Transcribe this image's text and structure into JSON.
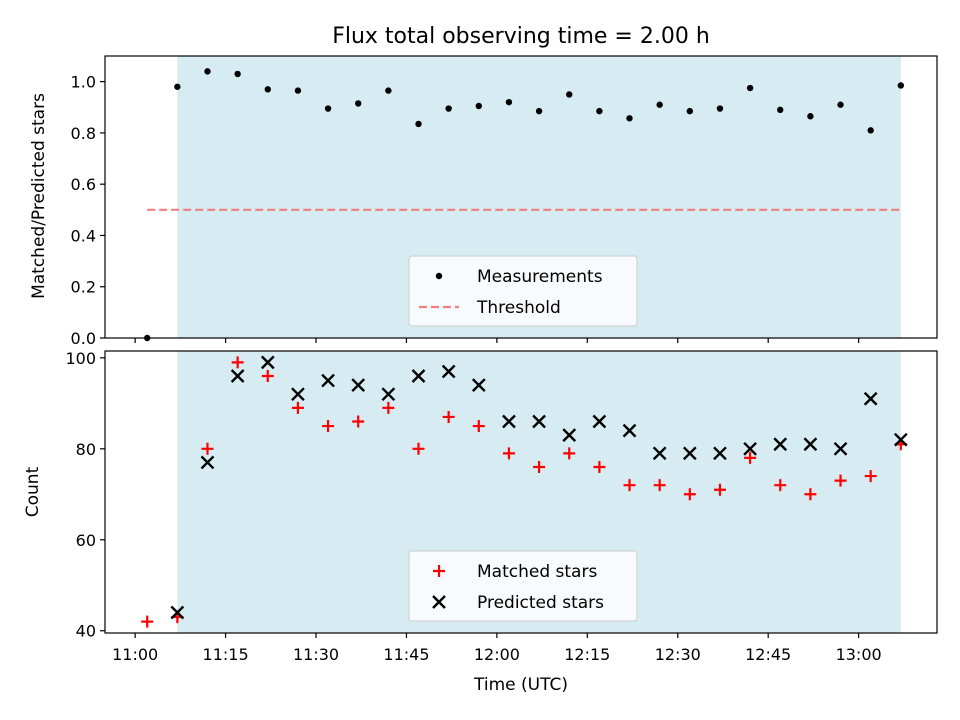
{
  "figure": {
    "title": "Flux total observing time = 2.00 h",
    "xlabel": "Time (UTC)"
  },
  "colors": {
    "shade": "#add8e6",
    "threshold": "#f08080",
    "matched": "#ff0000",
    "predicted": "#000000",
    "measurement": "#000000"
  },
  "chart_data": [
    {
      "type": "scatter",
      "id": "ratio",
      "ylabel": "Matched/Predicted stars",
      "xlim": [
        "10:55",
        "13:13"
      ],
      "ylim": [
        0.0,
        1.1
      ],
      "yticks": [
        0.0,
        0.2,
        0.4,
        0.6,
        0.8,
        1.0
      ],
      "ytick_labels": [
        "0.0",
        "0.2",
        "0.4",
        "0.6",
        "0.8",
        "1.0"
      ],
      "shaded_span": [
        "11:07",
        "13:07"
      ],
      "threshold": {
        "name": "Threshold",
        "value": 0.5,
        "x_range": [
          "11:02",
          "13:07"
        ]
      },
      "legend": {
        "position": "lower center",
        "entries": [
          "Measurements",
          "Threshold"
        ]
      },
      "series": [
        {
          "name": "Measurements",
          "marker": "dot",
          "x": [
            "11:02",
            "11:07",
            "11:12",
            "11:17",
            "11:22",
            "11:27",
            "11:32",
            "11:37",
            "11:42",
            "11:47",
            "11:52",
            "11:57",
            "12:02",
            "12:07",
            "12:12",
            "12:17",
            "12:22",
            "12:27",
            "12:32",
            "12:37",
            "12:42",
            "12:47",
            "12:52",
            "12:57",
            "13:02",
            "13:07"
          ],
          "values": [
            0.0,
            0.98,
            1.04,
            1.03,
            0.97,
            0.965,
            0.895,
            0.915,
            0.965,
            0.835,
            0.895,
            0.905,
            0.92,
            0.885,
            0.95,
            0.885,
            0.857,
            0.91,
            0.885,
            0.895,
            0.975,
            0.89,
            0.865,
            0.91,
            0.81,
            0.985
          ]
        }
      ]
    },
    {
      "type": "scatter",
      "id": "count",
      "ylabel": "Count",
      "xlabel": "Time (UTC)",
      "xlim": [
        "10:55",
        "13:13"
      ],
      "ylim": [
        39.5,
        101.5
      ],
      "yticks": [
        40,
        60,
        80,
        100
      ],
      "ytick_labels": [
        "40",
        "60",
        "80",
        "100"
      ],
      "xticks": [
        "11:00",
        "11:15",
        "11:30",
        "11:45",
        "12:00",
        "12:15",
        "12:30",
        "12:45",
        "13:00"
      ],
      "xtick_labels": [
        "11:00",
        "11:15",
        "11:30",
        "11:45",
        "12:00",
        "12:15",
        "12:30",
        "12:45",
        "13:00"
      ],
      "shaded_span": [
        "11:07",
        "13:07"
      ],
      "legend": {
        "position": "lower center",
        "entries": [
          "Matched stars",
          "Predicted stars"
        ]
      },
      "series": [
        {
          "name": "Matched stars",
          "marker": "plus",
          "x": [
            "11:02",
            "11:07",
            "11:12",
            "11:17",
            "11:22",
            "11:27",
            "11:32",
            "11:37",
            "11:42",
            "11:47",
            "11:52",
            "11:57",
            "12:02",
            "12:07",
            "12:12",
            "12:17",
            "12:22",
            "12:27",
            "12:32",
            "12:37",
            "12:42",
            "12:47",
            "12:52",
            "12:57",
            "13:02",
            "13:07"
          ],
          "values": [
            42,
            43,
            80,
            99,
            96,
            89,
            85,
            86,
            89,
            80,
            87,
            85,
            79,
            76,
            79,
            76,
            72,
            72,
            70,
            71,
            78,
            72,
            70,
            73,
            74,
            81
          ]
        },
        {
          "name": "Predicted stars",
          "marker": "x",
          "x": [
            "11:07",
            "11:12",
            "11:17",
            "11:22",
            "11:27",
            "11:32",
            "11:37",
            "11:42",
            "11:47",
            "11:52",
            "11:57",
            "12:02",
            "12:07",
            "12:12",
            "12:17",
            "12:22",
            "12:27",
            "12:32",
            "12:37",
            "12:42",
            "12:47",
            "12:52",
            "12:57",
            "13:02",
            "13:07"
          ],
          "values": [
            44,
            77,
            96,
            99,
            92,
            95,
            94,
            92,
            96,
            97,
            94,
            86,
            86,
            83,
            86,
            84,
            79,
            79,
            79,
            80,
            81,
            81,
            80,
            91,
            82
          ]
        }
      ]
    }
  ]
}
